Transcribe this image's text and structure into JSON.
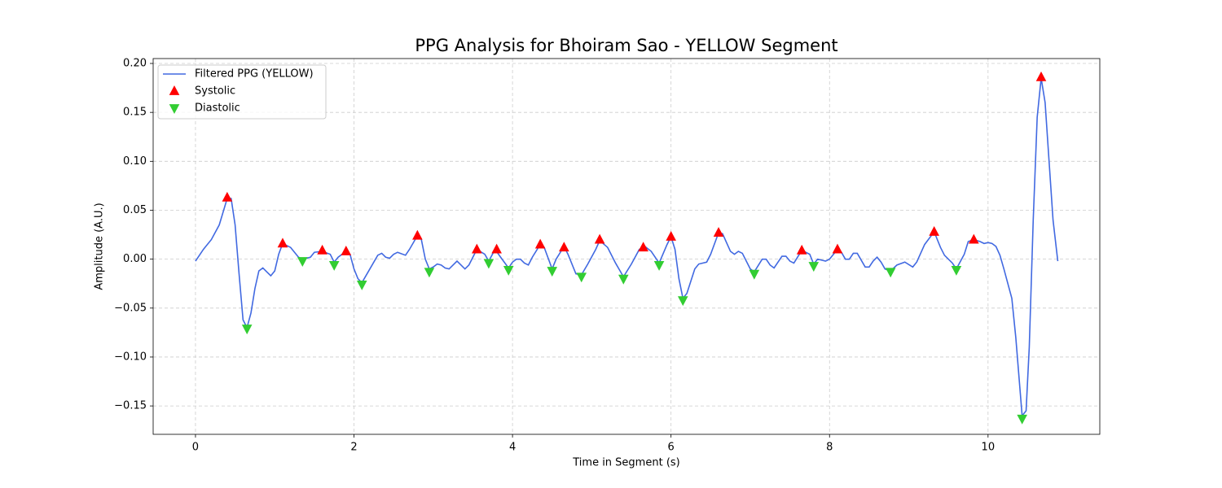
{
  "chart_data": {
    "type": "line",
    "title": "PPG Analysis for Bhoiram Sao - YELLOW Segment",
    "x_label": "Time in Segment (s)",
    "y_label": "Amplitude (A.U.)",
    "xlim": [
      -0.534,
      11.41
    ],
    "ylim": [
      -0.179,
      0.205
    ],
    "xticks": [
      0,
      2,
      4,
      6,
      8,
      10
    ],
    "yticks": [
      {
        "value": -0.15,
        "label": "−0.15"
      },
      {
        "value": -0.1,
        "label": "−0.10"
      },
      {
        "value": -0.05,
        "label": "−0.05"
      },
      {
        "value": 0,
        "label": "0.00"
      },
      0.05,
      {
        "value": 0.1,
        "label": "0.10"
      },
      0.15,
      {
        "value": 0.2,
        "label": "0.20"
      }
    ],
    "grid": true,
    "legend": "upper left",
    "series": [
      {
        "name": "Filtered PPG (YELLOW)",
        "type": "line",
        "color": "#4169e1",
        "x": [
          0,
          0.1,
          0.2,
          0.3,
          0.4,
          0.45,
          0.5,
          0.55,
          0.6,
          0.65,
          0.7,
          0.75,
          0.8,
          0.85,
          0.9,
          0.95,
          1.0,
          1.05,
          1.1,
          1.2,
          1.3,
          1.35,
          1.45,
          1.5,
          1.6,
          1.7,
          1.75,
          1.8,
          1.9,
          1.95,
          2.0,
          2.05,
          2.1,
          2.2,
          2.3,
          2.35,
          2.4,
          2.45,
          2.5,
          2.55,
          2.65,
          2.7,
          2.8,
          2.85,
          2.9,
          2.95,
          3.0,
          3.05,
          3.1,
          3.15,
          3.2,
          3.3,
          3.4,
          3.45,
          3.55,
          3.65,
          3.7,
          3.78,
          3.85,
          3.95,
          4.0,
          4.05,
          4.1,
          4.15,
          4.2,
          4.25,
          4.35,
          4.4,
          4.5,
          4.55,
          4.65,
          4.7,
          4.8,
          4.87,
          4.95,
          5.05,
          5.1,
          5.2,
          5.3,
          5.4,
          5.5,
          5.6,
          5.67,
          5.75,
          5.85,
          5.95,
          6.0,
          6.05,
          6.1,
          6.15,
          6.2,
          6.3,
          6.35,
          6.45,
          6.5,
          6.6,
          6.65,
          6.75,
          6.8,
          6.85,
          6.9,
          7.0,
          7.05,
          7.15,
          7.2,
          7.25,
          7.3,
          7.4,
          7.45,
          7.5,
          7.55,
          7.65,
          7.75,
          7.8,
          7.85,
          7.95,
          8.0,
          8.1,
          8.15,
          8.2,
          8.25,
          8.3,
          8.35,
          8.45,
          8.5,
          8.55,
          8.6,
          8.65,
          8.7,
          8.77,
          8.85,
          8.95,
          9.05,
          9.1,
          9.2,
          9.32,
          9.4,
          9.45,
          9.55,
          9.6,
          9.7,
          9.75,
          9.82,
          9.9,
          9.95,
          10.0,
          10.05,
          10.1,
          10.15,
          10.2,
          10.3,
          10.35,
          10.4,
          10.43,
          10.48,
          10.52,
          10.57,
          10.62,
          10.67,
          10.72,
          10.77,
          10.82,
          10.88
        ],
        "values": [
          -0.002,
          0.01,
          0.02,
          0.035,
          0.062,
          0.062,
          0.035,
          -0.015,
          -0.062,
          -0.07,
          -0.055,
          -0.03,
          -0.012,
          -0.009,
          -0.013,
          -0.017,
          -0.012,
          0.005,
          0.016,
          0.012,
          0.002,
          0.0,
          0.002,
          0.007,
          0.008,
          0.005,
          -0.003,
          0.002,
          0.008,
          0.005,
          -0.01,
          -0.02,
          -0.024,
          -0.01,
          0.004,
          0.006,
          0.002,
          0.001,
          0.005,
          0.007,
          0.004,
          0.01,
          0.024,
          0.02,
          0.0,
          -0.01,
          -0.008,
          -0.005,
          -0.006,
          -0.009,
          -0.01,
          -0.002,
          -0.01,
          -0.006,
          0.01,
          0.005,
          -0.002,
          0.01,
          0.002,
          -0.009,
          -0.003,
          0.0,
          0.0,
          -0.004,
          -0.006,
          0.002,
          0.015,
          0.012,
          -0.01,
          0.0,
          0.013,
          0.005,
          -0.015,
          -0.016,
          -0.005,
          0.01,
          0.019,
          0.012,
          -0.004,
          -0.018,
          -0.005,
          0.01,
          0.013,
          0.008,
          -0.004,
          0.015,
          0.023,
          0.01,
          -0.02,
          -0.04,
          -0.035,
          -0.01,
          -0.005,
          -0.003,
          0.005,
          0.027,
          0.026,
          0.008,
          0.005,
          0.008,
          0.006,
          -0.01,
          -0.013,
          0.0,
          0.0,
          -0.006,
          -0.009,
          0.003,
          0.003,
          -0.002,
          -0.004,
          0.009,
          0.005,
          -0.005,
          0.0,
          -0.002,
          0.0,
          0.01,
          0.007,
          0.0,
          0.0,
          0.006,
          0.006,
          -0.008,
          -0.008,
          -0.002,
          0.002,
          -0.003,
          -0.01,
          -0.012,
          -0.006,
          -0.003,
          -0.008,
          -0.003,
          0.015,
          0.028,
          0.012,
          0.004,
          -0.004,
          -0.01,
          0.005,
          0.018,
          0.02,
          0.018,
          0.016,
          0.017,
          0.016,
          0.013,
          0.004,
          -0.01,
          -0.04,
          -0.08,
          -0.13,
          -0.16,
          -0.155,
          -0.09,
          0.04,
          0.145,
          0.185,
          0.16,
          0.1,
          0.04,
          -0.002
        ]
      },
      {
        "name": "Systolic",
        "type": "scatter",
        "marker": "^",
        "color": "#ff0000",
        "x": [
          0.4,
          1.1,
          1.6,
          1.9,
          2.8,
          3.55,
          3.8,
          4.35,
          4.65,
          5.1,
          5.65,
          6.0,
          6.6,
          7.65,
          8.1,
          9.32,
          9.82,
          10.67
        ],
        "values": [
          0.063,
          0.016,
          0.009,
          0.008,
          0.024,
          0.01,
          0.01,
          0.015,
          0.012,
          0.02,
          0.012,
          0.023,
          0.027,
          0.009,
          0.01,
          0.028,
          0.02,
          0.186
        ]
      },
      {
        "name": "Diastolic",
        "type": "scatter",
        "marker": "v",
        "color": "#32cd32",
        "x": [
          0.65,
          1.35,
          1.75,
          2.1,
          2.95,
          3.7,
          3.95,
          4.5,
          4.87,
          5.4,
          5.85,
          6.15,
          7.05,
          7.8,
          8.77,
          9.6,
          10.43
        ],
        "values": [
          -0.071,
          -0.002,
          -0.006,
          -0.026,
          -0.013,
          -0.004,
          -0.011,
          -0.012,
          -0.018,
          -0.02,
          -0.006,
          -0.042,
          -0.015,
          -0.007,
          -0.013,
          -0.011,
          -0.163
        ]
      }
    ]
  }
}
